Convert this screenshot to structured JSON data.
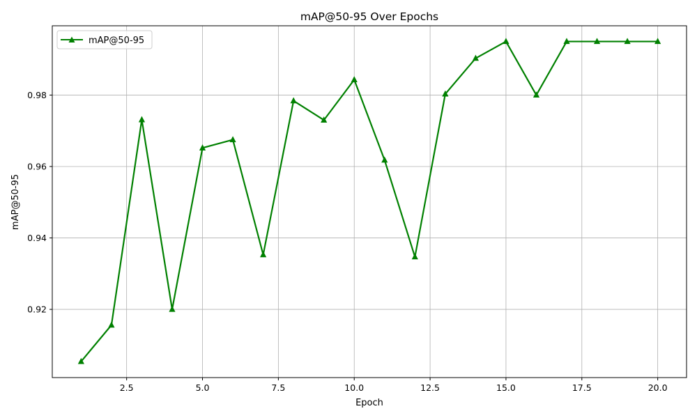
{
  "chart_data": {
    "type": "line",
    "title": "mAP@50-95 Over Epochs",
    "xlabel": "Epoch",
    "ylabel": "mAP@50-95",
    "xlim": [
      0.05,
      20.95
    ],
    "ylim": [
      0.9009,
      0.9994
    ],
    "xticks": [
      2.5,
      5.0,
      7.5,
      10.0,
      12.5,
      15.0,
      17.5,
      20.0
    ],
    "xtick_labels": [
      "2.5",
      "5.0",
      "7.5",
      "10.0",
      "12.5",
      "15.0",
      "17.5",
      "20.0"
    ],
    "yticks": [
      0.92,
      0.94,
      0.96,
      0.98
    ],
    "ytick_labels": [
      "0.92",
      "0.94",
      "0.96",
      "0.98"
    ],
    "grid": true,
    "legend_position": "top-left",
    "series": [
      {
        "name": "mAP@50-95",
        "color": "#008000",
        "marker": "triangle-up",
        "x": [
          1,
          2,
          3,
          4,
          5,
          6,
          7,
          8,
          9,
          10,
          11,
          12,
          13,
          14,
          15,
          16,
          17,
          18,
          19,
          20
        ],
        "y": [
          0.9054,
          0.9156,
          0.9731,
          0.92,
          0.9652,
          0.9675,
          0.9353,
          0.9784,
          0.973,
          0.9843,
          0.9618,
          0.9347,
          0.9803,
          0.9903,
          0.995,
          0.98,
          0.995,
          0.995,
          0.995,
          0.995
        ]
      }
    ]
  }
}
